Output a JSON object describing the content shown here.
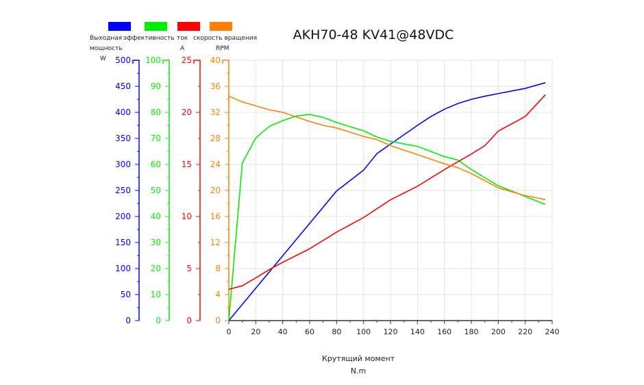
{
  "chart_data": {
    "type": "line",
    "title": "AKH70-48 KV41@48VDC",
    "xlabel": "Крутящий момент",
    "xunit": "N.m",
    "xlim": [
      0,
      240
    ],
    "xticks": [
      0,
      20,
      40,
      60,
      80,
      100,
      120,
      140,
      160,
      180,
      200,
      220,
      240
    ],
    "grid": true,
    "legend_position": "top-left",
    "series": [
      {
        "name": "Выходная мощность",
        "unit": "W",
        "color": "#0000ff",
        "ylim": [
          0,
          500
        ],
        "ticks": [
          0,
          50,
          100,
          150,
          200,
          250,
          300,
          350,
          400,
          450,
          500
        ],
        "points": [
          [
            0,
            0
          ],
          [
            80,
            249
          ],
          [
            100,
            289
          ],
          [
            110,
            321
          ],
          [
            120,
            339
          ],
          [
            140,
            375
          ],
          [
            150,
            392
          ],
          [
            160,
            406
          ],
          [
            170,
            417
          ],
          [
            180,
            425
          ],
          [
            190,
            431
          ],
          [
            200,
            436
          ],
          [
            220,
            446
          ],
          [
            235,
            457
          ]
        ]
      },
      {
        "name": "эффективность",
        "unit": "",
        "color": "#00ee00",
        "ylim": [
          0,
          100
        ],
        "ticks": [
          0,
          10,
          20,
          30,
          40,
          50,
          60,
          70,
          80,
          90,
          100
        ],
        "points": [
          [
            0,
            0
          ],
          [
            10,
            60.5
          ],
          [
            20,
            70.2
          ],
          [
            30,
            74.6
          ],
          [
            40,
            76.8
          ],
          [
            50,
            78.6
          ],
          [
            60,
            79.2
          ],
          [
            70,
            78.1
          ],
          [
            80,
            76.1
          ],
          [
            100,
            72.9
          ],
          [
            110,
            70.5
          ],
          [
            120,
            68.9
          ],
          [
            140,
            66.9
          ],
          [
            160,
            63
          ],
          [
            170,
            61.7
          ],
          [
            180,
            58
          ],
          [
            200,
            51.8
          ],
          [
            220,
            47.7
          ],
          [
            235,
            44.6
          ]
        ]
      },
      {
        "name": "ток",
        "unit": "A",
        "color": "#ff0000",
        "ylim": [
          0,
          25
        ],
        "ticks": [
          0,
          5,
          10,
          15,
          20,
          25
        ],
        "points": [
          [
            0,
            3.0
          ],
          [
            10,
            3.35
          ],
          [
            20,
            4.1
          ],
          [
            30,
            4.9
          ],
          [
            40,
            5.6
          ],
          [
            60,
            6.9
          ],
          [
            80,
            8.5
          ],
          [
            100,
            9.9
          ],
          [
            120,
            11.6
          ],
          [
            140,
            12.9
          ],
          [
            160,
            14.5
          ],
          [
            180,
            16.0
          ],
          [
            190,
            16.8
          ],
          [
            200,
            18.2
          ],
          [
            220,
            19.6
          ],
          [
            235,
            21.7
          ]
        ]
      },
      {
        "name": "скорость вращения",
        "unit": "RPM",
        "color": "#ff8000",
        "ylim": [
          0,
          40
        ],
        "ticks": [
          0,
          4,
          8,
          12,
          16,
          20,
          24,
          28,
          32,
          36,
          40
        ],
        "points": [
          [
            0,
            34.5
          ],
          [
            10,
            33.6
          ],
          [
            20,
            33.0
          ],
          [
            30,
            32.4
          ],
          [
            40,
            32.0
          ],
          [
            60,
            30.6
          ],
          [
            70,
            30.0
          ],
          [
            80,
            29.6
          ],
          [
            100,
            28.3
          ],
          [
            110,
            27.8
          ],
          [
            120,
            26.9
          ],
          [
            140,
            25.5
          ],
          [
            160,
            24.1
          ],
          [
            170,
            23.5
          ],
          [
            180,
            22.6
          ],
          [
            200,
            20.4
          ],
          [
            220,
            19.2
          ],
          [
            235,
            18.6
          ]
        ]
      }
    ]
  }
}
